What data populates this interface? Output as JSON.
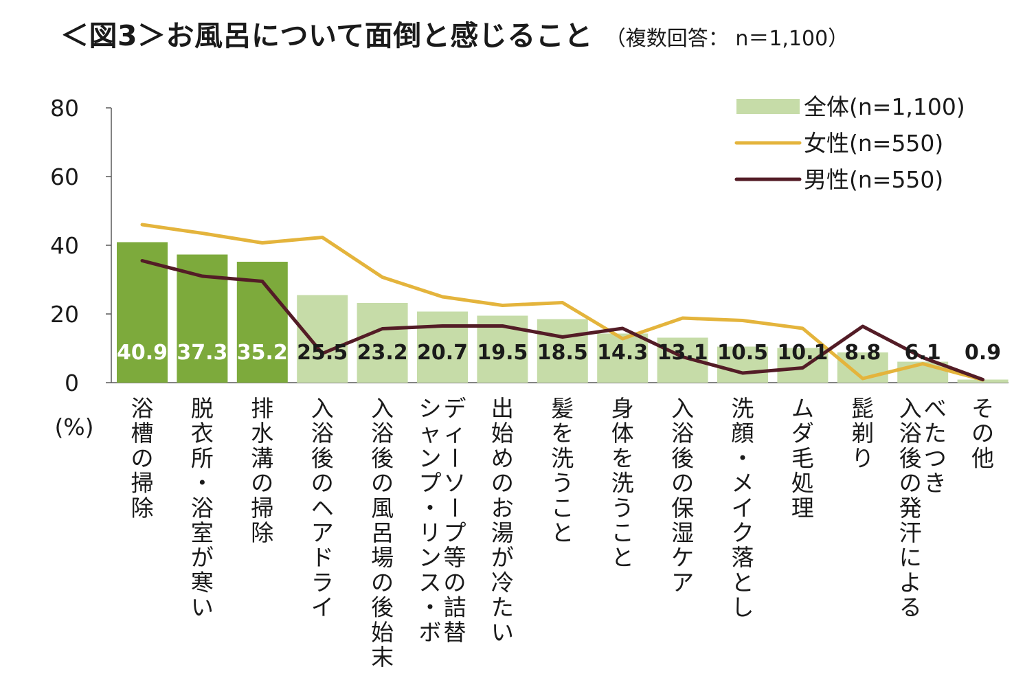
{
  "title": {
    "main": "＜図3＞お風呂について面倒と感じること",
    "sub": "（複数回答： n＝1,100）"
  },
  "colors": {
    "bar_highlight": "#7daa3c",
    "bar_normal": "#c6dca8",
    "female_line": "#e4b43c",
    "male_line": "#531c26",
    "label_on_dark": "#ffffff",
    "label_on_light": "#1a1a1a"
  },
  "chart_data": {
    "type": "bar",
    "ylabel": "(%)",
    "ylim": [
      0,
      80
    ],
    "yticks": [
      "0",
      "20",
      "40",
      "60",
      "80"
    ],
    "grid": false,
    "legend_position": "top-right",
    "highlighted_count": 3,
    "categories": [
      "浴槽の掃除",
      "脱衣所・浴室が寒い",
      "排水溝の掃除",
      "入浴後のヘアドライ",
      "入浴後の風呂場の後始末",
      "シャンプ・リンス・ボディーソープ等の詰替",
      "出始めのお湯が冷たい",
      "髪を洗うこと",
      "身体を洗うこと",
      "入浴後の保湿ケア",
      "洗顔・メイク落とし",
      "ムダ毛処理",
      "髭剃り",
      "入浴後の発汗によるべたつき",
      "その他"
    ],
    "category_columns": [
      [
        "浴槽の掃除"
      ],
      [
        "脱衣所・浴室が寒い"
      ],
      [
        "排水溝の掃除"
      ],
      [
        "入浴後のヘアドライ"
      ],
      [
        "入浴後の風呂場の後始末"
      ],
      [
        "ディーソープ等の詰替",
        "シャンプ・リンス・ボ"
      ],
      [
        "出始めのお湯が冷たい"
      ],
      [
        "髪を洗うこと"
      ],
      [
        "身体を洗うこと"
      ],
      [
        "入浴後の保湿ケア"
      ],
      [
        "洗顔・メイク落とし"
      ],
      [
        "ムダ毛処理"
      ],
      [
        "髭剃り"
      ],
      [
        "べたつき",
        "入浴後の発汗による"
      ],
      [
        "その他"
      ]
    ],
    "series": [
      {
        "name": "全体(n=1,100)",
        "type": "bar",
        "values": [
          40.9,
          37.3,
          35.2,
          25.5,
          23.2,
          20.7,
          19.5,
          18.5,
          14.3,
          13.1,
          10.5,
          10.1,
          8.8,
          6.1,
          0.9
        ],
        "labels": [
          "40.9",
          "37.3",
          "35.2",
          "25.5",
          "23.2",
          "20.7",
          "19.5",
          "18.5",
          "14.3",
          "13.1",
          "10.5",
          "10.1",
          "8.8",
          "6.1",
          "0.9"
        ]
      },
      {
        "name": "女性(n=550)",
        "type": "line",
        "values": [
          46,
          43.5,
          40.7,
          42.3,
          30.7,
          25,
          22.5,
          23.3,
          12.8,
          18.8,
          18.1,
          15.8,
          1.2,
          5.5,
          0.8
        ]
      },
      {
        "name": "男性(n=550)",
        "type": "line",
        "values": [
          35.5,
          31,
          29.5,
          8.5,
          15.7,
          16.5,
          16.5,
          13.3,
          15.8,
          7.5,
          2.8,
          4.3,
          16.4,
          7.3,
          0.9
        ]
      }
    ]
  }
}
